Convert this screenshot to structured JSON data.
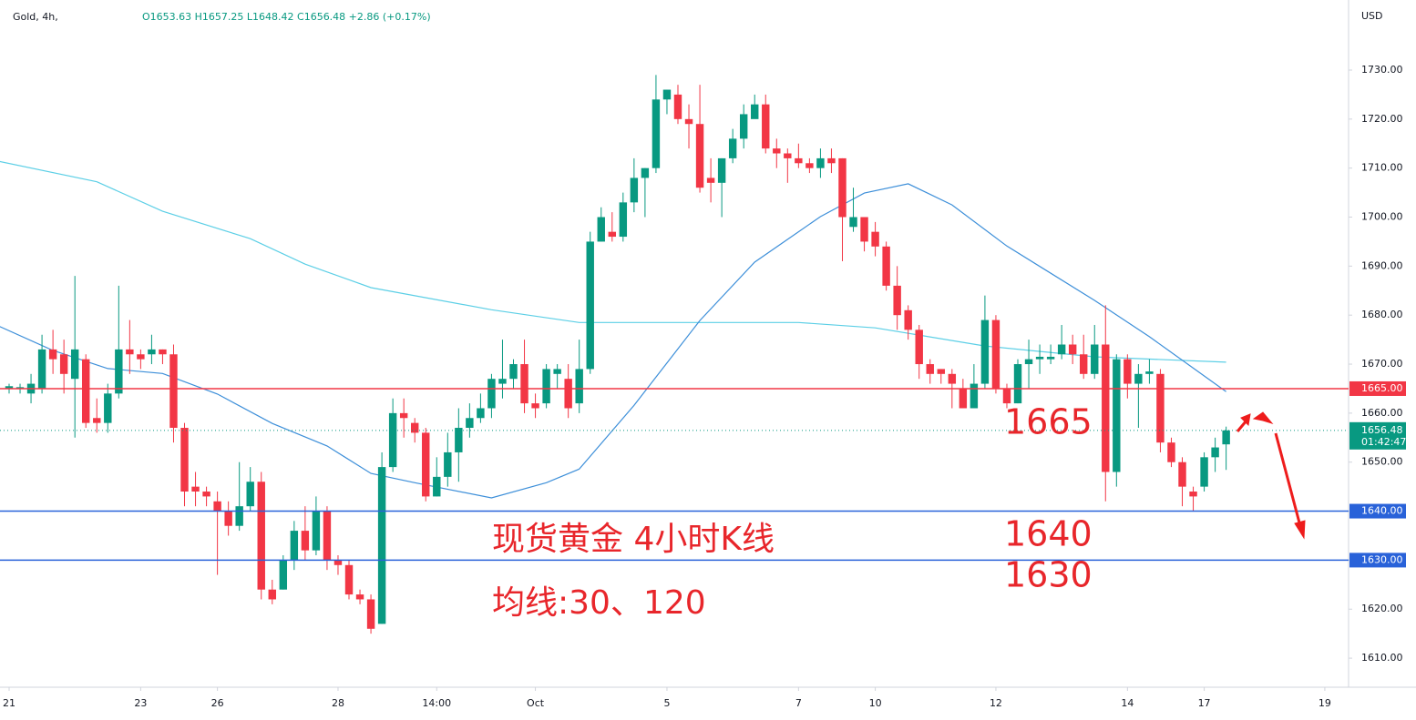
{
  "chart_data": {
    "type": "candlestick",
    "symbol": "Gold, 4h,",
    "ohlc_text": "O1653.63 H1657.25 L1648.42 C1656.48 +2.86 (+0.17%)",
    "currency": "USD",
    "up_color": "#089981",
    "down_color": "#f23645",
    "open": [
      1665,
      1665,
      1664,
      1665,
      1673,
      1672,
      1667,
      1671,
      1659,
      1658,
      1664,
      1673,
      1672,
      1672,
      1673,
      1672,
      1657,
      1645,
      1644,
      1642,
      1640,
      1637,
      1641,
      1646,
      1624,
      1624,
      1630,
      1636,
      1632,
      1640,
      1630,
      1629,
      1623,
      1622,
      1617,
      1649,
      1660,
      1658,
      1656,
      1643,
      1647,
      1652,
      1657,
      1659,
      1661,
      1666,
      1667,
      1670,
      1662,
      1662,
      1668,
      1667,
      1662,
      1669,
      1695,
      1697,
      1696,
      1703,
      1708,
      1710,
      1724,
      1725,
      1720,
      1719,
      1708,
      1707,
      1712,
      1716,
      1720,
      1723,
      1714,
      1713,
      1712,
      1711,
      1710,
      1712,
      1712,
      1698,
      1700,
      1697,
      1694,
      1686,
      1681,
      1677,
      1670,
      1669,
      1668,
      1665,
      1661,
      1666,
      1679,
      1665,
      1662,
      1670,
      1671,
      1671,
      1672,
      1674,
      1672,
      1668,
      1674,
      1648,
      1671,
      1666,
      1668,
      1668,
      1654,
      1650,
      1644,
      1645,
      1651,
      1653.63
    ],
    "high": [
      1666,
      1666,
      1668,
      1676,
      1677,
      1675,
      1688,
      1672,
      1663,
      1666,
      1686,
      1679,
      1673,
      1676,
      1673,
      1674,
      1658,
      1648,
      1645,
      1644,
      1642,
      1650,
      1649,
      1648,
      1626,
      1631,
      1638,
      1641,
      1643,
      1641,
      1631,
      1630,
      1624,
      1623,
      1652,
      1663,
      1663,
      1659,
      1657,
      1651,
      1656,
      1661,
      1662,
      1664,
      1668,
      1675,
      1671,
      1675,
      1664,
      1670,
      1670,
      1670,
      1675,
      1697,
      1702,
      1701,
      1705,
      1712,
      1710,
      1729,
      1726,
      1727,
      1723,
      1727,
      1712,
      1712,
      1718,
      1723,
      1725,
      1725,
      1716,
      1714,
      1715,
      1712,
      1714,
      1714,
      1712,
      1706,
      1700,
      1699,
      1695,
      1690,
      1682,
      1678,
      1671,
      1669,
      1669,
      1667,
      1670,
      1684,
      1680,
      1666,
      1671,
      1675,
      1674,
      1674,
      1678,
      1676,
      1676,
      1678,
      1682,
      1672,
      1672,
      1670,
      1671,
      1669,
      1655,
      1651,
      1645,
      1652,
      1655,
      1657.25
    ],
    "low": [
      1664,
      1664,
      1662,
      1664,
      1668,
      1664,
      1655,
      1657,
      1656,
      1656,
      1663,
      1668,
      1669,
      1670,
      1670,
      1654,
      1641,
      1641,
      1641,
      1627,
      1635,
      1636,
      1640,
      1622,
      1621,
      1624,
      1628,
      1630,
      1631,
      1628,
      1627,
      1622,
      1621,
      1615,
      1617,
      1648,
      1655,
      1654,
      1642,
      1643,
      1645,
      1646,
      1655,
      1658,
      1659,
      1663,
      1665,
      1660,
      1659,
      1661,
      1665,
      1659,
      1660,
      1668,
      1695,
      1695,
      1695,
      1701,
      1700,
      1709,
      1721,
      1719,
      1714,
      1705,
      1703,
      1700,
      1711,
      1714,
      1721,
      1713,
      1710,
      1707,
      1710,
      1709,
      1708,
      1709,
      1691,
      1697,
      1693,
      1692,
      1685,
      1677,
      1675,
      1667,
      1666,
      1666,
      1661,
      1661,
      1661,
      1665,
      1664,
      1661,
      1662,
      1665,
      1668,
      1670,
      1671,
      1670,
      1667,
      1667,
      1642,
      1645,
      1663,
      1657,
      1666,
      1652,
      1649,
      1641,
      1640,
      1644,
      1648,
      1648.42
    ],
    "close": [
      1665.5,
      1665.3,
      1666,
      1673,
      1671,
      1668,
      1673,
      1658,
      1658,
      1664,
      1673,
      1672,
      1671,
      1673,
      1672,
      1657,
      1644,
      1644,
      1643,
      1640,
      1637,
      1641,
      1646,
      1624,
      1622,
      1630,
      1636,
      1632,
      1640,
      1630,
      1629,
      1623,
      1622,
      1616,
      1649,
      1660,
      1659,
      1656,
      1643,
      1647,
      1652,
      1657,
      1659,
      1661,
      1667,
      1667,
      1670,
      1662,
      1661,
      1669,
      1669,
      1661,
      1669,
      1695,
      1700,
      1696,
      1703,
      1708,
      1710,
      1724,
      1726,
      1720,
      1719,
      1706,
      1707,
      1712,
      1716,
      1721,
      1723,
      1714,
      1713,
      1712,
      1711,
      1710,
      1712,
      1711,
      1700,
      1700,
      1695,
      1694,
      1686,
      1680,
      1677,
      1670,
      1668,
      1668,
      1666,
      1661,
      1666,
      1679,
      1665,
      1662,
      1670,
      1671,
      1671.5,
      1671.5,
      1674,
      1672,
      1668,
      1674,
      1648,
      1671,
      1666,
      1668,
      1668.5,
      1654,
      1650,
      1645,
      1643,
      1651,
      1653,
      1656.48
    ],
    "moving_averages": [
      {
        "color": "#5ccfe6",
        "x": [
          -1,
          8,
          14,
          22,
          27,
          33,
          44,
          52,
          62,
          72,
          79,
          89,
          99,
          111
        ],
        "values": [
          1711.4,
          1707.2,
          1701.2,
          1695.6,
          1690.4,
          1685.6,
          1681.1,
          1678.5,
          1678.5,
          1678.5,
          1677.4,
          1673.7,
          1671.5,
          1670.4
        ]
      },
      {
        "color": "#3d8fd9",
        "x": [
          -1,
          4,
          9,
          14,
          19,
          24,
          29,
          33,
          37,
          44,
          49,
          52,
          57,
          63,
          68,
          74,
          78,
          82,
          86,
          91,
          99,
          104,
          111
        ],
        "values": [
          1677.8,
          1672.8,
          1669.1,
          1668.1,
          1663.9,
          1657.9,
          1653.3,
          1647.7,
          1645.8,
          1642.7,
          1645.8,
          1648.6,
          1661.6,
          1678.9,
          1690.8,
          1700.1,
          1704.9,
          1706.8,
          1702.5,
          1694.1,
          1683,
          1675.6,
          1664.4
        ]
      }
    ],
    "hlines": [
      {
        "value": 1665,
        "label": "1665.00",
        "color": "#f23645"
      },
      {
        "value": 1640,
        "label": "1640.00",
        "color": "#2962d9"
      },
      {
        "value": 1630,
        "label": "1630.00",
        "color": "#2962d9"
      }
    ],
    "last_price": {
      "value": 1656.48,
      "label": "1656.48",
      "countdown": "01:42:47",
      "color": "#089981"
    },
    "ylim": [
      1605,
      1744.3
    ],
    "yticks": [
      {
        "value": 1610,
        "label": "1610.00"
      },
      {
        "value": 1620,
        "label": "1620.00"
      },
      {
        "value": 1630,
        "label": "1630.00"
      },
      {
        "value": 1640,
        "label": "1640.00"
      },
      {
        "value": 1650,
        "label": "1650.00"
      },
      {
        "value": 1660,
        "label": "1660.00"
      },
      {
        "value": 1670,
        "label": "1670.00"
      },
      {
        "value": 1680,
        "label": "1680.00"
      },
      {
        "value": 1690,
        "label": "1690.00"
      },
      {
        "value": 1700,
        "label": "1700.00"
      },
      {
        "value": 1710,
        "label": "1710.00"
      },
      {
        "value": 1720,
        "label": "1720.00"
      },
      {
        "value": 1730,
        "label": "1730.00"
      }
    ],
    "xlim": [
      -0.83,
      122
    ],
    "xticks": [
      {
        "value": 0,
        "label": "21"
      },
      {
        "value": 12,
        "label": "23"
      },
      {
        "value": 19,
        "label": "26"
      },
      {
        "value": 30,
        "label": "28"
      },
      {
        "value": 39,
        "label": "14:00"
      },
      {
        "value": 48,
        "label": "Oct"
      },
      {
        "value": 60,
        "label": "5"
      },
      {
        "value": 72,
        "label": "7"
      },
      {
        "value": 79,
        "label": "10"
      },
      {
        "value": 90,
        "label": "12"
      },
      {
        "value": 102,
        "label": "14"
      },
      {
        "value": 109,
        "label": "17"
      },
      {
        "value": 120,
        "label": "19"
      }
    ],
    "annotations": [
      "1665",
      "1640",
      "1630",
      "现货黄金 4小时K线",
      "均线:30、120"
    ]
  }
}
